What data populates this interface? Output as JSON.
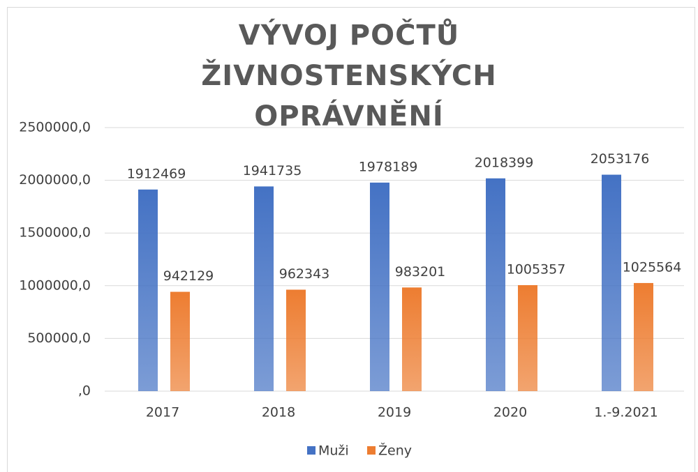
{
  "chart_data": {
    "type": "bar",
    "title": "VÝVOJ POČTŮ ŽIVNOSTENSKÝCH OPRÁVNĚNÍ",
    "categories": [
      "2017",
      "2018",
      "2019",
      "2020",
      "1.-9.2021"
    ],
    "series": [
      {
        "name": "Muži",
        "color": "#4472c4",
        "values": [
          1912469,
          1941735,
          1978189,
          2018399,
          2053176
        ]
      },
      {
        "name": "Ženy",
        "color": "#ed7d31",
        "values": [
          942129,
          962343,
          983201,
          1005357,
          1025564
        ]
      }
    ],
    "ylim": [
      0,
      2500000
    ],
    "yticks": [
      {
        "value": 0,
        "label": ",0"
      },
      {
        "value": 500000,
        "label": "500000,0"
      },
      {
        "value": 1000000,
        "label": "1000000,0"
      },
      {
        "value": 1500000,
        "label": "1500000,0"
      },
      {
        "value": 2000000,
        "label": "2000000,0"
      },
      {
        "value": 2500000,
        "label": "2500000,0"
      }
    ],
    "grid": true,
    "legend": "bottom"
  }
}
